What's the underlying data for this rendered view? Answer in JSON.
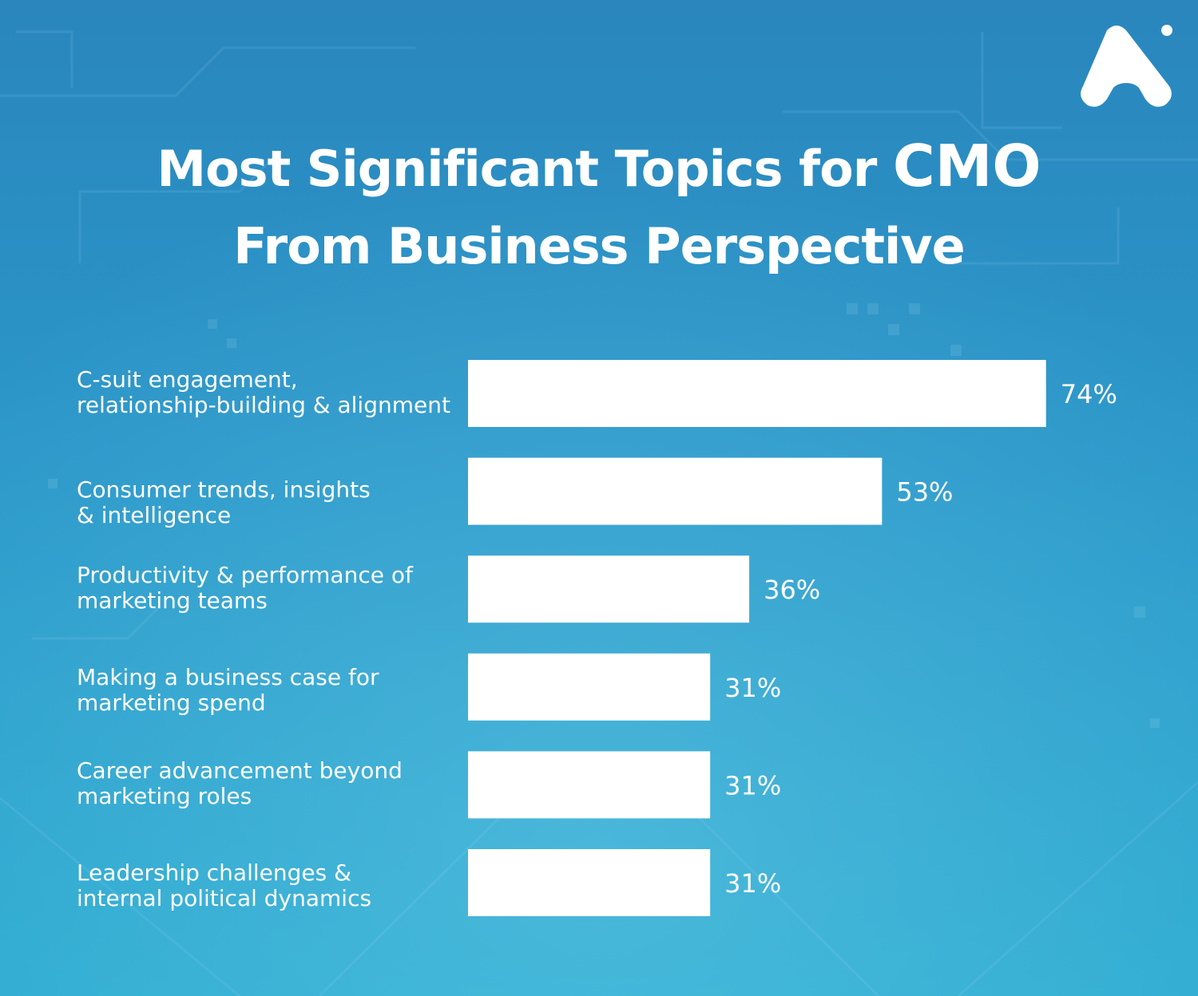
{
  "title": {
    "line1_prefix": "Most Significant Topics for",
    "line1_emphasis": "CMO",
    "line2": "From Business Perspective"
  },
  "logo": {
    "icon": "brand-logo-icon",
    "color": "#ffffff"
  },
  "colors": {
    "bar": "#ffffff",
    "text": "#ffffff",
    "background_top": "#2a86bd",
    "background_bottom": "#2cabd0"
  },
  "chart_data": {
    "type": "bar",
    "orientation": "horizontal",
    "categories": [
      [
        "C-suit engagement,",
        "relationship-building & alignment"
      ],
      [
        "Consumer trends, insights",
        "& intelligence"
      ],
      [
        "Productivity & performance of",
        "marketing teams"
      ],
      [
        "Making a business case for",
        "marketing spend"
      ],
      [
        "Career advancement beyond",
        "marketing roles"
      ],
      [
        "Leadership challenges &",
        "internal political dynamics"
      ]
    ],
    "values": [
      74,
      53,
      36,
      31,
      31,
      31
    ],
    "value_labels": [
      "74%",
      "53%",
      "36%",
      "31%",
      "31%",
      "31%"
    ],
    "unit": "%",
    "xlim": [
      0,
      100
    ],
    "grid": false,
    "legend": "none"
  }
}
